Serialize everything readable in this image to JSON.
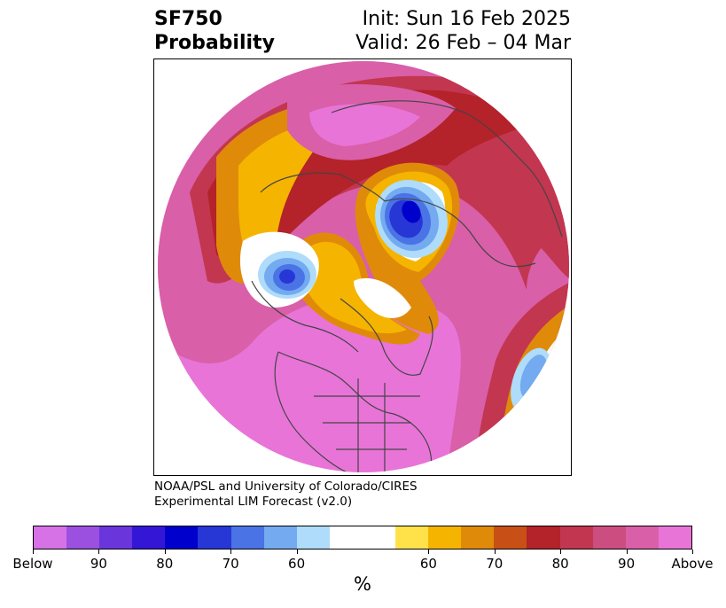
{
  "title": {
    "line1_left": "SF750",
    "line2_left": "Probability",
    "line1_right": "Init: Sun 16 Feb 2025",
    "line2_right": "Valid: 26 Feb – 04 Mar"
  },
  "credit": {
    "line1": "NOAA/PSL and University of Colorado/CIRES",
    "line2": "Experimental LIM Forecast (v2.0)"
  },
  "colorbar": {
    "unit_label": "%",
    "colors": [
      "#d672e6",
      "#9b50e0",
      "#6a35db",
      "#3417d6",
      "#0000cc",
      "#2637d6",
      "#4a73e6",
      "#73aaf0",
      "#aedcfa",
      "#ffffff",
      "#ffffff",
      "#ffe24a",
      "#f5b400",
      "#e08a0a",
      "#c85016",
      "#b4222a",
      "#c23650",
      "#cc4e80",
      "#d95fa8",
      "#e874d8"
    ],
    "tick_labels": [
      "Below",
      "90",
      "80",
      "70",
      "60",
      "60",
      "70",
      "80",
      "90",
      "Above"
    ]
  },
  "map": {
    "projection": "north-polar-stereographic",
    "shading_colors": {
      "above_strong": "#e874d8",
      "above_mid": "#d95fa8",
      "above_80": "#c23650",
      "above_75": "#b4222a",
      "above_70": "#c85016",
      "above_65": "#e08a0a",
      "above_60": "#f5b400",
      "above_55": "#ffe24a",
      "below_90": "#0000cc",
      "below_75": "#2637d6",
      "below_70": "#4a73e6",
      "below_65": "#73aaf0",
      "below_60": "#aedcfa",
      "coastline": "#444444"
    }
  }
}
